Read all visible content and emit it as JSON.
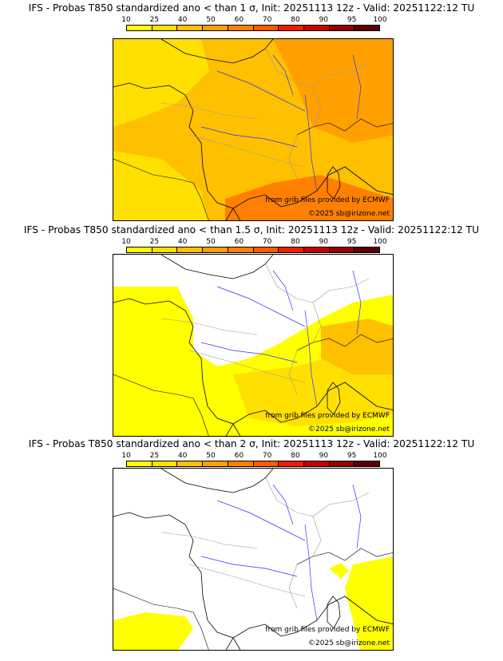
{
  "colorbar": {
    "ticks": [
      "10",
      "25",
      "40",
      "50",
      "60",
      "70",
      "80",
      "90",
      "95",
      "100"
    ],
    "colors": [
      "#ffff00",
      "#ffe000",
      "#ffc000",
      "#ffa000",
      "#ff8000",
      "#ff5a00",
      "#ee1c00",
      "#c80000",
      "#960000",
      "#5a0000"
    ]
  },
  "panels": [
    {
      "title": "IFS - Probas T850  standardized ano < than 1 σ, Init: 20251113 12z - Valid: 20251122:12 TU",
      "credit_source": "from grib files provided by ECMWF",
      "credit_copyright": "©2025 sb@irizone.net",
      "fill_level": "high"
    },
    {
      "title": "IFS - Probas T850  standardized ano < than 1.5 σ, Init: 20251113 12z - Valid: 20251122:12 TU",
      "credit_source": "from grib files provided by ECMWF",
      "credit_copyright": "©2025 sb@irizone.net",
      "fill_level": "medium"
    },
    {
      "title": "IFS - Probas T850  standardized ano < than 2 σ, Init: 20251113 12z - Valid: 20251122:12 TU",
      "credit_source": "from grib files provided by ECMWF",
      "credit_copyright": "©2025 sb@irizone.net",
      "fill_level": "low"
    }
  ]
}
